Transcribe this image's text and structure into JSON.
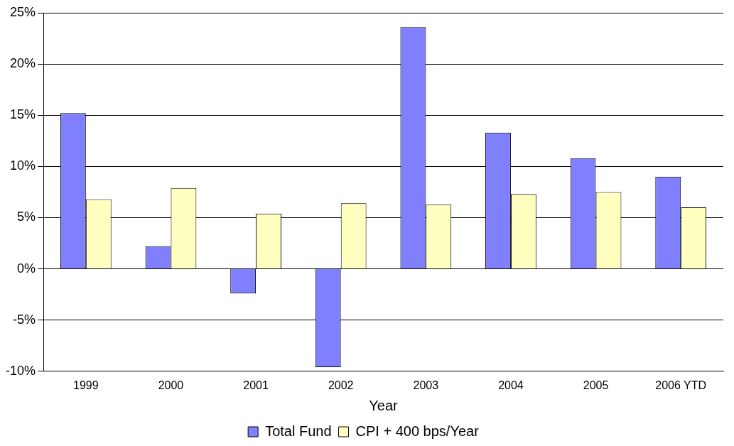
{
  "chart_data": {
    "type": "bar",
    "xlabel": "Year",
    "categories": [
      "1999",
      "2000",
      "2001",
      "2002",
      "2003",
      "2004",
      "2005",
      "2006 YTD"
    ],
    "series": [
      {
        "name": "Total Fund",
        "color": "#8080ff",
        "values": [
          15.2,
          2.2,
          -2.4,
          -9.6,
          23.6,
          13.3,
          10.8,
          9.0
        ]
      },
      {
        "name": "CPI + 400 bps/Year",
        "color": "#ffffc0",
        "values": [
          6.8,
          7.9,
          5.4,
          6.4,
          6.3,
          7.3,
          7.5,
          6.0
        ]
      }
    ],
    "ylim": [
      -10,
      25
    ],
    "yticks": [
      {
        "value": -10,
        "label": "-10%"
      },
      {
        "value": -5,
        "label": "-5%"
      },
      {
        "value": 0,
        "label": "0%"
      },
      {
        "value": 5,
        "label": "5%"
      },
      {
        "value": 10,
        "label": "10%"
      },
      {
        "value": 15,
        "label": "15%"
      },
      {
        "value": 20,
        "label": "20%"
      },
      {
        "value": 25,
        "label": "25%"
      }
    ],
    "grid": true,
    "legend": "bottom"
  }
}
